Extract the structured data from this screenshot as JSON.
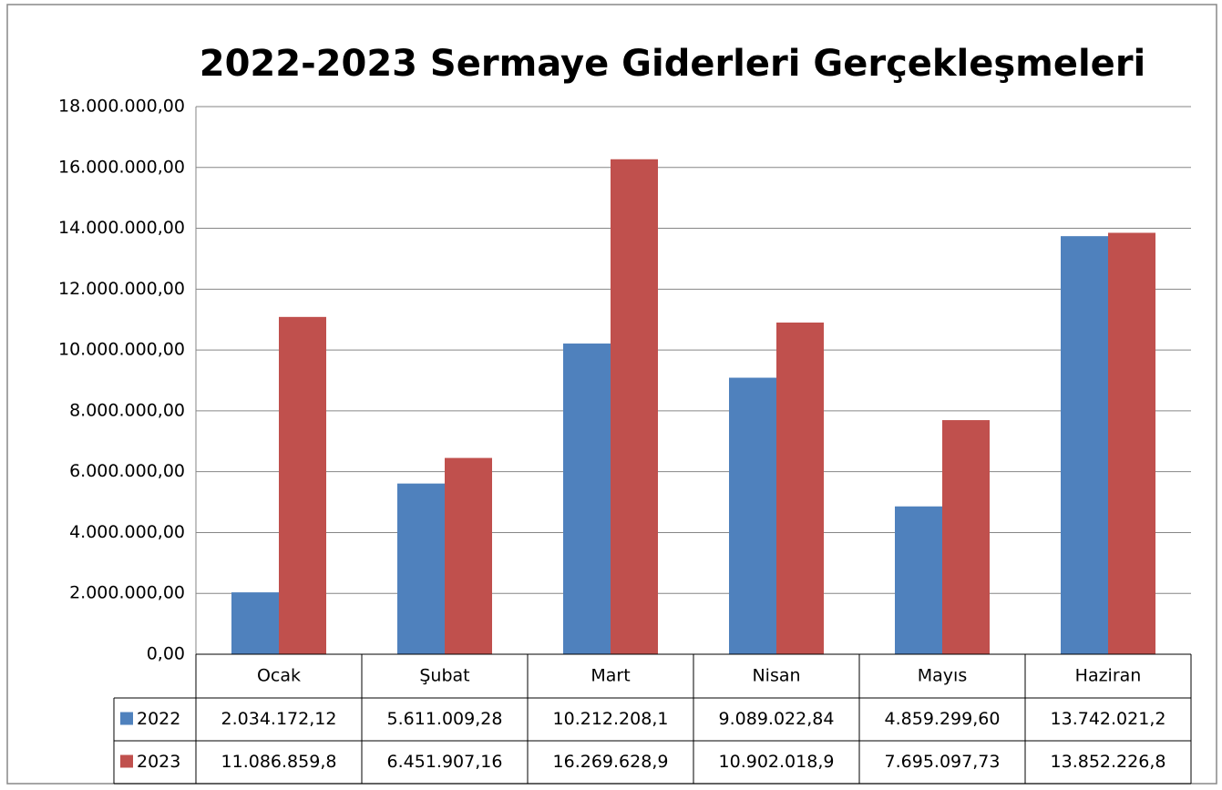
{
  "chart_data": {
    "type": "bar",
    "title": "2022-2023 Sermaye Giderleri Gerçekleşmeleri",
    "categories": [
      "Ocak",
      "Şubat",
      "Mart",
      "Nisan",
      "Mayıs",
      "Haziran"
    ],
    "series": [
      {
        "name": "2022",
        "color": "#4f81bd",
        "values": [
          2034172.12,
          5611009.28,
          10212208.1,
          9089022.84,
          4859299.6,
          13742021.2
        ],
        "value_labels": [
          "2.034.172,12",
          "5.611.009,28",
          "10.212.208,1",
          "9.089.022,84",
          "4.859.299,60",
          "13.742.021,2"
        ]
      },
      {
        "name": "2023",
        "color": "#c0504d",
        "values": [
          11086859.8,
          6451907.16,
          16269628.9,
          10902018.9,
          7695097.73,
          13852226.8
        ],
        "value_labels": [
          "11.086.859,8",
          "6.451.907,16",
          "16.269.628,9",
          "10.902.018,9",
          "7.695.097,73",
          "13.852.226,8"
        ]
      }
    ],
    "ylim": [
      0,
      18000000
    ],
    "yticks": [
      {
        "value": 0,
        "label": "0,00"
      },
      {
        "value": 2000000,
        "label": "2.000.000,00"
      },
      {
        "value": 4000000,
        "label": "4.000.000,00"
      },
      {
        "value": 6000000,
        "label": "6.000.000,00"
      },
      {
        "value": 8000000,
        "label": "8.000.000,00"
      },
      {
        "value": 10000000,
        "label": "10.000.000,00"
      },
      {
        "value": 12000000,
        "label": "12.000.000,00"
      },
      {
        "value": 14000000,
        "label": "14.000.000,00"
      },
      {
        "value": 16000000,
        "label": "16.000.000,00"
      },
      {
        "value": 18000000,
        "label": "18.000.000,00"
      }
    ],
    "grid": true
  }
}
